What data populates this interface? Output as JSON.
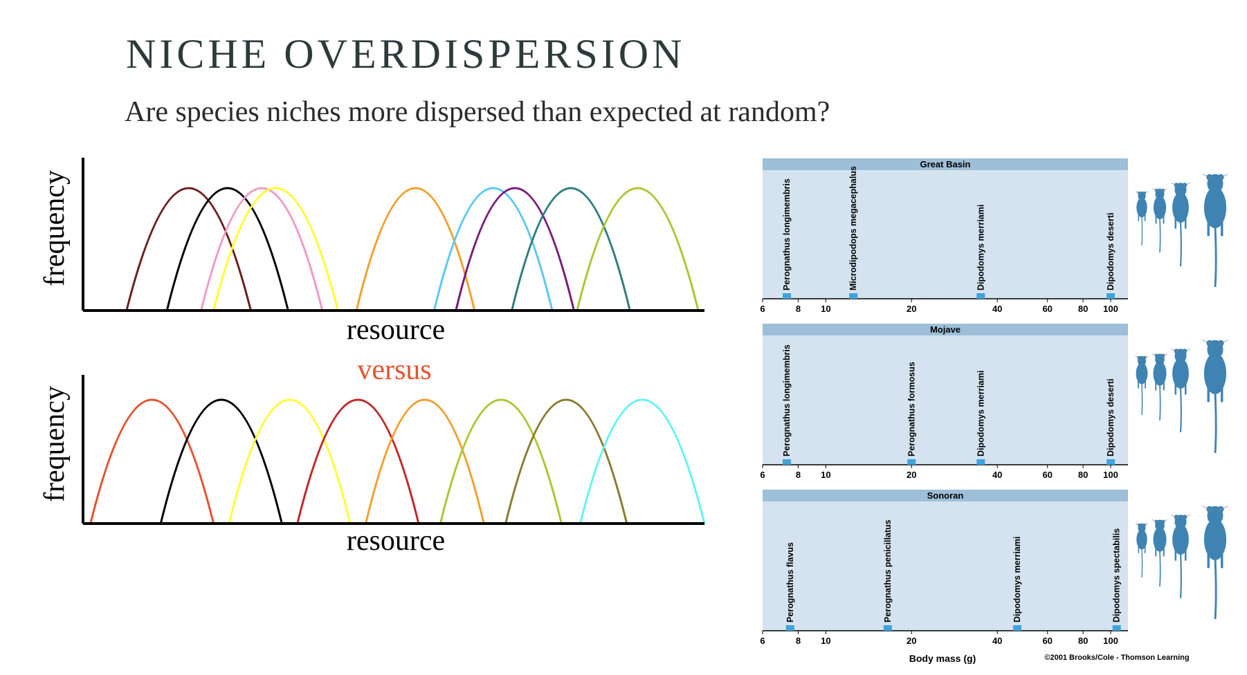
{
  "slide": {
    "title": "NICHE OVERDISPERSION",
    "subtitle": "Are species niches more dispersed than expected at random?",
    "connector": "versus"
  },
  "left_panels": [
    {
      "id": "overlapping",
      "ylabel": "frequency",
      "xlabel": "resource",
      "curves": [
        {
          "color": "#6b1f1a",
          "start": 0.07,
          "end": 0.27
        },
        {
          "color": "#000000",
          "start": 0.135,
          "end": 0.33
        },
        {
          "color": "#f09ac7",
          "start": 0.19,
          "end": 0.385
        },
        {
          "color": "#ffff33",
          "start": 0.21,
          "end": 0.41
        },
        {
          "color": "#f0a030",
          "start": 0.44,
          "end": 0.63
        },
        {
          "color": "#5bc8f0",
          "start": 0.565,
          "end": 0.755
        },
        {
          "color": "#7a1a7a",
          "start": 0.6,
          "end": 0.79
        },
        {
          "color": "#2e7d7d",
          "start": 0.69,
          "end": 0.88
        },
        {
          "color": "#a8c832",
          "start": 0.795,
          "end": 0.99
        }
      ]
    },
    {
      "id": "dispersed",
      "ylabel": "frequency",
      "xlabel": "resource",
      "curves": [
        {
          "color": "#e4532f",
          "start": 0.012,
          "end": 0.21
        },
        {
          "color": "#000000",
          "start": 0.125,
          "end": 0.32
        },
        {
          "color": "#ffff33",
          "start": 0.235,
          "end": 0.43
        },
        {
          "color": "#c0282a",
          "start": 0.345,
          "end": 0.54
        },
        {
          "color": "#f0a030",
          "start": 0.455,
          "end": 0.645
        },
        {
          "color": "#a8c832",
          "start": 0.575,
          "end": 0.77
        },
        {
          "color": "#8b7a30",
          "start": 0.68,
          "end": 0.875
        },
        {
          "color": "#66f2f2",
          "start": 0.8,
          "end": 1.0
        }
      ]
    }
  ],
  "desert_chart": {
    "xlabel": "Body mass (g)",
    "ticks": [
      "6",
      "8",
      "10",
      "20",
      "40",
      "60",
      "80",
      "100"
    ],
    "tick_values": [
      6,
      8,
      10,
      20,
      40,
      60,
      80,
      100
    ],
    "credit": "©2001 Brooks/Cole - Thomson Learning",
    "colors": {
      "band": "#9dbfd8",
      "panel": "#d4e3ef",
      "marker": "#3fa3dc",
      "rodent": "#3f83b3"
    },
    "panels": [
      {
        "name": "Great Basin",
        "species": [
          {
            "label": "Perognathus longimembris",
            "mass": 7.3
          },
          {
            "label": "Microdipodops megacephalus",
            "mass": 12.5
          },
          {
            "label": "Dipodomys merriami",
            "mass": 35
          },
          {
            "label": "Dipodomys deserti",
            "mass": 100
          }
        ]
      },
      {
        "name": "Mojave",
        "species": [
          {
            "label": "Perognathus longimembris",
            "mass": 7.3
          },
          {
            "label": "Perognathus formosus",
            "mass": 20
          },
          {
            "label": "Dipodomys merriami",
            "mass": 35
          },
          {
            "label": "Dipodomys deserti",
            "mass": 100
          }
        ]
      },
      {
        "name": "Sonoran",
        "species": [
          {
            "label": "Perognathus flavus",
            "mass": 7.5
          },
          {
            "label": "Perognathus penicillatus",
            "mass": 16.5
          },
          {
            "label": "Dipodomys merriami",
            "mass": 47
          },
          {
            "label": "Dipodomys spectabilis",
            "mass": 105
          }
        ]
      }
    ]
  }
}
